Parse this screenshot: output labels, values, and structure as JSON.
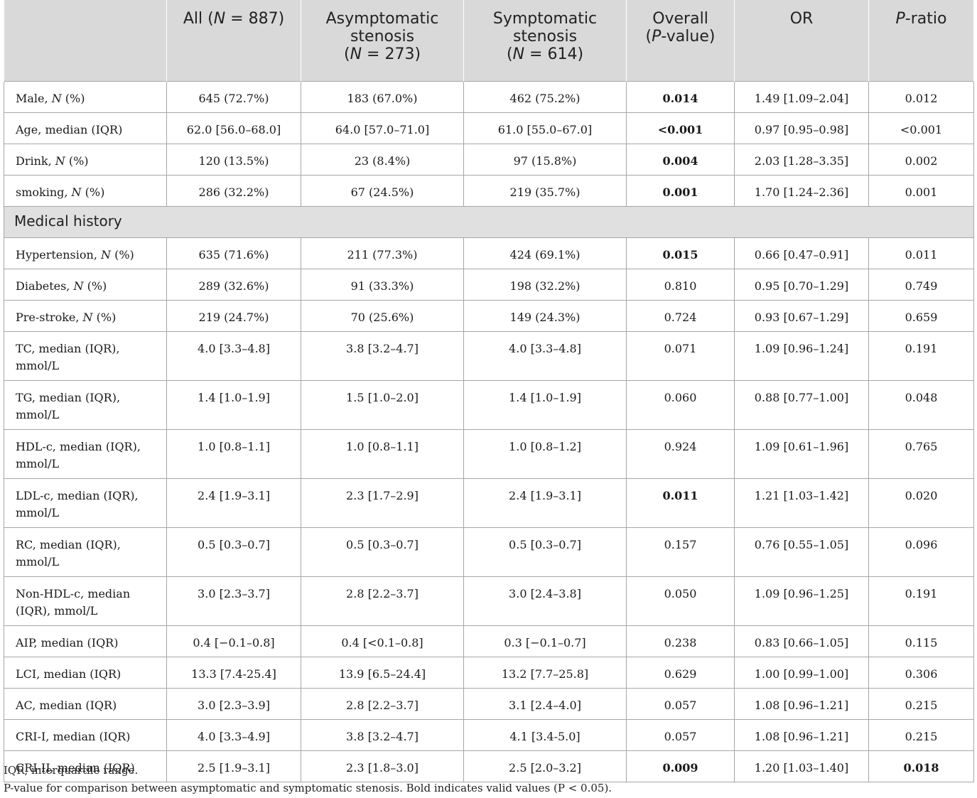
{
  "table": {
    "header": {
      "c0": "",
      "c1_main": "All (",
      "c1_n": "N",
      "c1_rest": " = 887)",
      "c2_line1": "Asymptomatic",
      "c2_line2": "stenosis",
      "c2_open": "(",
      "c2_n": "N",
      "c2_rest": " = 273)",
      "c3_line1": "Symptomatic",
      "c3_line2": "stenosis",
      "c3_open": "(",
      "c3_n": "N",
      "c3_rest": " = 614)",
      "c4_line1": "Overall",
      "c4_open": "(",
      "c4_p": "P",
      "c4_rest": "-value)",
      "c5": "OR",
      "c6_p": "P",
      "c6_rest": "-ratio"
    },
    "rows_top": [
      {
        "label": "Male, ",
        "unit_n": "N",
        "label_tail": " (%)",
        "all": "645 (72.7%)",
        "asym": "183 (67.0%)",
        "sym": "462 (75.2%)",
        "p": "0.014",
        "or": "1.49 [1.09–2.04]",
        "pratio": "0.012"
      },
      {
        "label": "Age, median (IQR)",
        "unit_n": "",
        "label_tail": "",
        "all": "62.0 [56.0–68.0]",
        "asym": "64.0 [57.0–71.0]",
        "sym": "61.0 [55.0–67.0]",
        "p": "<0.001",
        "or": "0.97 [0.95–0.98]",
        "pratio": "<0.001"
      },
      {
        "label": "Drink, ",
        "unit_n": "N",
        "label_tail": " (%)",
        "all": "120 (13.5%)",
        "asym": "23 (8.4%)",
        "sym": "97 (15.8%)",
        "p": "0.004",
        "or": "2.03 [1.28–3.35]",
        "pratio": "0.002"
      },
      {
        "label": "smoking, ",
        "unit_n": "N",
        "label_tail": " (%)",
        "all": "286 (32.2%)",
        "asym": "67 (24.5%)",
        "sym": "219 (35.7%)",
        "p": "0.001",
        "or": "1.70 [1.24–2.36]",
        "pratio": "0.001"
      }
    ],
    "section_title": "Medical history",
    "rows_history": [
      {
        "label": "Hypertension, ",
        "unit_n": "N",
        "label_tail": " (%)",
        "all": "635 (71.6%)",
        "asym": "211 (77.3%)",
        "sym": "424 (69.1%)",
        "p": "0.015",
        "or": "0.66 [0.47–0.91]",
        "pratio": "0.011"
      },
      {
        "label": "Diabetes, ",
        "unit_n": "N",
        "label_tail": " (%)",
        "all": "289 (32.6%)",
        "asym": "91 (33.3%)",
        "sym": "198 (32.2%)",
        "p": "0.810",
        "or": "0.95 [0.70–1.29]",
        "pratio": "0.749"
      },
      {
        "label": "Pre-stroke, ",
        "unit_n": "N",
        "label_tail": " (%)",
        "all": "219 (24.7%)",
        "asym": "70 (25.6%)",
        "sym": "149 (24.3%)",
        "p": "0.724",
        "or": "0.93 [0.67–1.29]",
        "pratio": "0.659"
      },
      {
        "label_line1": "TC, median (IQR),",
        "label_line2": "mmol/L",
        "all": "4.0 [3.3–4.8]",
        "asym": "3.8 [3.2–4.7]",
        "sym": "4.0 [3.3–4.8]",
        "p": "0.071",
        "or": "1.09 [0.96–1.24]",
        "pratio": "0.191"
      },
      {
        "label_line1": "TG, median (IQR),",
        "label_line2": "mmol/L",
        "all": "1.4 [1.0–1.9]",
        "asym": "1.5 [1.0–2.0]",
        "sym": "1.4 [1.0–1.9]",
        "p": "0.060",
        "or": "0.88 [0.77–1.00]",
        "pratio": "0.048"
      },
      {
        "label_line1": "HDL-c, median (IQR),",
        "label_line2": "mmol/L",
        "all": "1.0 [0.8–1.1]",
        "asym": "1.0 [0.8–1.1]",
        "sym": "1.0 [0.8–1.2]",
        "p": "0.924",
        "or": "1.09 [0.61–1.96]",
        "pratio": "0.765"
      },
      {
        "label_line1": "LDL-c, median (IQR),",
        "label_line2": "mmol/L",
        "all": "2.4 [1.9–3.1]",
        "asym": "2.3 [1.7–2.9]",
        "sym": "2.4 [1.9–3.1]",
        "p": "0.011",
        "or": "1.21 [1.03–1.42]",
        "pratio": "0.020"
      },
      {
        "label_line1": "RC, median (IQR),",
        "label_line2": "mmol/L",
        "all": "0.5 [0.3–0.7]",
        "asym": "0.5 [0.3–0.7]",
        "sym": "0.5 [0.3–0.7]",
        "p": "0.157",
        "or": "0.76 [0.55–1.05]",
        "pratio": "0.096"
      },
      {
        "label_line1": "Non-HDL-c, median",
        "label_line2": "(IQR), mmol/L",
        "all": "3.0 [2.3–3.7]",
        "asym": "2.8 [2.2–3.7]",
        "sym": "3.0 [2.4–3.8]",
        "p": "0.050",
        "or": "1.09 [0.96–1.25]",
        "pratio": "0.191"
      },
      {
        "label": "AIP, median (IQR)",
        "all": "0.4 [−0.1–0.8]",
        "asym": "0.4 [<0.1–0.8]",
        "sym": "0.3 [−0.1–0.7]",
        "p": "0.238",
        "or": "0.83 [0.66–1.05]",
        "pratio": "0.115"
      },
      {
        "label": "LCI, median (IQR)",
        "all": "13.3 [7.4-25.4]",
        "asym": "13.9 [6.5–24.4]",
        "sym": "13.2 [7.7–25.8]",
        "p": "0.629",
        "or": "1.00 [0.99–1.00]",
        "pratio": "0.306"
      },
      {
        "label": "AC, median (IQR)",
        "all": "3.0 [2.3–3.9]",
        "asym": "2.8 [2.2–3.7]",
        "sym": "3.1 [2.4–4.0]",
        "p": "0.057",
        "or": "1.08 [0.96–1.21]",
        "pratio": "0.215"
      },
      {
        "label": "CRI-I, median (IQR)",
        "all": "4.0 [3.3–4.9]",
        "asym": "3.8 [3.2–4.7]",
        "sym": "4.1 [3.4-5.0]",
        "p": "0.057",
        "or": "1.08 [0.96–1.21]",
        "pratio": "0.215"
      },
      {
        "label": "CRI-II, median (IQR)",
        "all": "2.5 [1.9–3.1]",
        "asym": "2.3 [1.8–3.0]",
        "sym": "2.5 [2.0–3.2]",
        "p": "0.009",
        "or": "1.20 [1.03–1.40]",
        "pratio": "0.018"
      }
    ]
  },
  "footnotes": {
    "line1": "IQR, interquartile range.",
    "line2": "P-value for comparison between asymptomatic and symptomatic stenosis. Bold indicates valid values (P < 0.05)."
  }
}
